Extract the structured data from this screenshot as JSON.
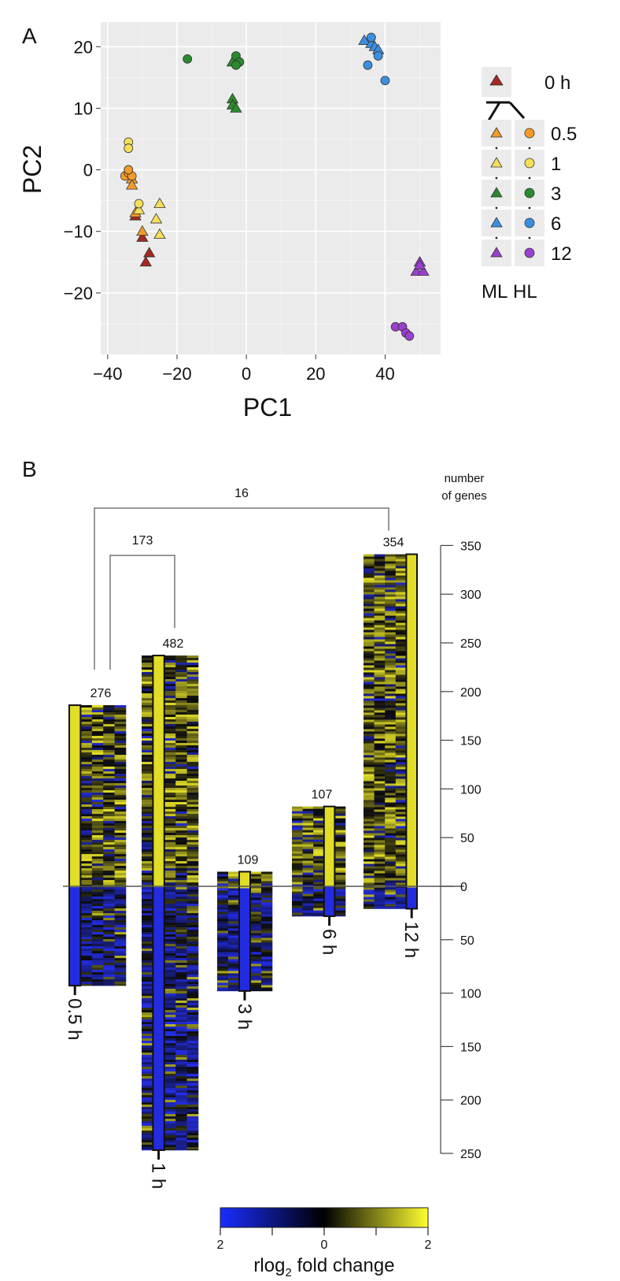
{
  "panelA": {
    "label": "A",
    "chart_data": {
      "type": "scatter",
      "xlabel": "PC1",
      "ylabel": "PC2",
      "xlim": [
        -42,
        56
      ],
      "ylim": [
        -30,
        24
      ],
      "xticks": [
        -40,
        -20,
        0,
        20,
        40
      ],
      "xtick_labels": [
        "−40",
        "−20",
        "0",
        "20",
        "40"
      ],
      "yticks": [
        20,
        10,
        0,
        -10,
        -20
      ],
      "ytick_labels": [
        "20",
        "10",
        "0",
        "−10",
        "−20"
      ],
      "grid": true,
      "legend_position": "right",
      "series": [
        {
          "name": "0 h",
          "group": "0 h",
          "marker": "triangle",
          "color": "#a32920",
          "points": [
            [
              -32,
              -7.5
            ],
            [
              -30,
              -11
            ],
            [
              -28,
              -13.5
            ],
            [
              -29,
              -15
            ]
          ]
        },
        {
          "name": "0.5 ML",
          "group": "ML",
          "marker": "triangle",
          "color": "#f39a2b",
          "points": [
            [
              -33,
              -1.5
            ],
            [
              -33,
              -2.5
            ],
            [
              -32,
              -7
            ],
            [
              -30,
              -10
            ]
          ]
        },
        {
          "name": "0.5 HL",
          "group": "HL",
          "marker": "circle",
          "color": "#f39a2b",
          "points": [
            [
              -35,
              -1
            ],
            [
              -34,
              -0.5
            ],
            [
              -33,
              -1
            ],
            [
              -34,
              0
            ]
          ]
        },
        {
          "name": "1 ML",
          "group": "ML",
          "marker": "triangle",
          "color": "#f3df5a",
          "points": [
            [
              -31,
              -6.5
            ],
            [
              -25,
              -5.5
            ],
            [
              -26,
              -8
            ],
            [
              -25,
              -10.5
            ]
          ]
        },
        {
          "name": "1 HL",
          "group": "HL",
          "marker": "circle",
          "color": "#f3df5a",
          "points": [
            [
              -34,
              4.5
            ],
            [
              -34,
              3.5
            ],
            [
              -31,
              -5.5
            ]
          ]
        },
        {
          "name": "3 ML",
          "group": "ML",
          "marker": "triangle",
          "color": "#2a8a2e",
          "points": [
            [
              -4,
              17.5
            ],
            [
              -4,
              11.5
            ],
            [
              -4,
              10.5
            ],
            [
              -3,
              10
            ]
          ]
        },
        {
          "name": "3 HL",
          "group": "HL",
          "marker": "circle",
          "color": "#2a8a2e",
          "points": [
            [
              -17,
              18
            ],
            [
              -3,
              18.5
            ],
            [
              -2,
              17.5
            ],
            [
              -3,
              17
            ]
          ]
        },
        {
          "name": "6 ML",
          "group": "ML",
          "marker": "triangle",
          "color": "#3b8fe0",
          "points": [
            [
              34,
              21
            ],
            [
              36,
              20.5
            ],
            [
              37,
              20
            ],
            [
              38,
              19.5
            ]
          ]
        },
        {
          "name": "6 HL",
          "group": "HL",
          "marker": "circle",
          "color": "#3b8fe0",
          "points": [
            [
              36,
              21.5
            ],
            [
              38,
              18.5
            ],
            [
              35,
              17
            ],
            [
              40,
              14.5
            ]
          ]
        },
        {
          "name": "12 ML",
          "group": "ML",
          "marker": "triangle",
          "color": "#9b3fcf",
          "points": [
            [
              50,
              -15
            ],
            [
              49,
              -16.5
            ],
            [
              51,
              -16.5
            ],
            [
              50,
              -15.5
            ]
          ]
        },
        {
          "name": "12 HL",
          "group": "HL",
          "marker": "circle",
          "color": "#9b3fcf",
          "points": [
            [
              43,
              -25.5
            ],
            [
              45,
              -25.5
            ],
            [
              46,
              -26.5
            ],
            [
              47,
              -27
            ]
          ]
        }
      ]
    },
    "legend": {
      "zero_label": "0 h",
      "rows": [
        {
          "label": "0.5",
          "color": "#f39a2b"
        },
        {
          "label": "1",
          "color": "#f3df5a"
        },
        {
          "label": "3",
          "color": "#2a8a2e"
        },
        {
          "label": "6",
          "color": "#3b8fe0"
        },
        {
          "label": "12",
          "color": "#9b3fcf"
        }
      ],
      "col_ml": "ML",
      "col_hl": "HL",
      "zero_color": "#a32920"
    }
  },
  "panelB": {
    "label": "B",
    "chart_data": {
      "type": "heatmap",
      "axis_title_lines": [
        "number",
        "of genes"
      ],
      "up_ticks": [
        350,
        300,
        250,
        200,
        150,
        100,
        50,
        0
      ],
      "down_ticks": [
        50,
        100,
        150,
        200,
        250
      ],
      "time_points": [
        {
          "label": "0.5 h",
          "total": 276,
          "up": 186,
          "down": 93,
          "highlight_col": 0
        },
        {
          "label": "1 h",
          "total": 482,
          "up": 237,
          "down": 247,
          "highlight_col": 1
        },
        {
          "label": "3 h",
          "total": 109,
          "up": 15,
          "down": 98,
          "highlight_col": 2
        },
        {
          "label": "6 h",
          "total": 107,
          "up": 82,
          "down": 28,
          "highlight_col": 3
        },
        {
          "label": "12 h",
          "total": 354,
          "up": 341,
          "down": 21,
          "highlight_col": 4
        }
      ],
      "overlaps": [
        {
          "label": "173",
          "from": "0.5 h",
          "to": "1 h"
        },
        {
          "label": "16",
          "from": "0.5 h",
          "to": "12 h"
        }
      ],
      "colorbar": {
        "title": "rlog",
        "title_sub": "2",
        "title_tail": " fold change",
        "tick_labels": [
          "2",
          "0",
          "2"
        ],
        "colors": [
          "#1a2dff",
          "#000000",
          "#ffff30"
        ]
      }
    }
  }
}
